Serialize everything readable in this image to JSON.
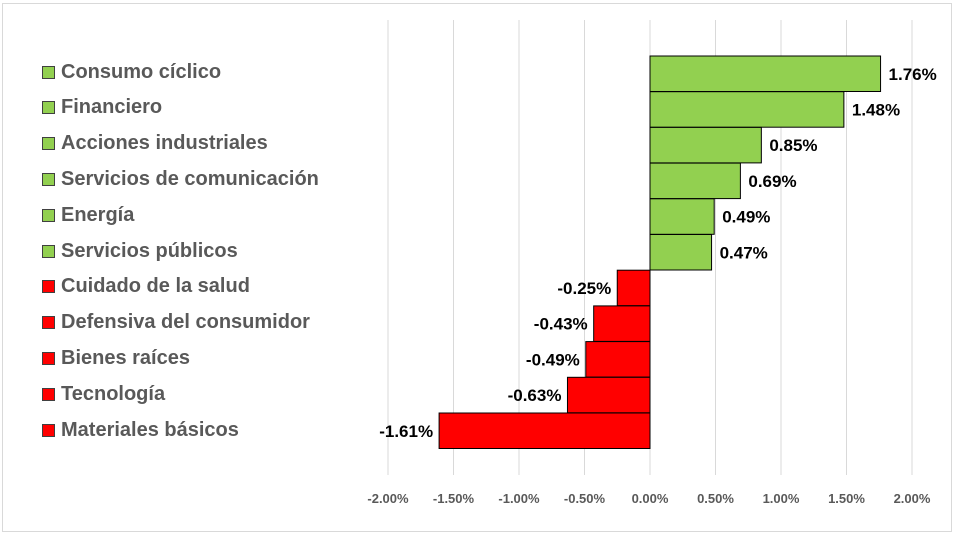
{
  "chart_data": {
    "type": "bar",
    "orientation": "horizontal",
    "categories": [
      "Consumo cíclico",
      "Financiero",
      "Acciones industriales",
      "Servicios de comunicación",
      "Energía",
      "Servicios públicos",
      "Cuidado de la salud",
      "Defensiva del consumidor",
      "Bienes raíces",
      "Tecnología",
      "Materiales básicos"
    ],
    "values": [
      1.76,
      1.48,
      0.85,
      0.69,
      0.49,
      0.47,
      -0.25,
      -0.43,
      -0.49,
      -0.63,
      -1.61
    ],
    "value_labels": [
      "1.76%",
      "1.48%",
      "0.85%",
      "0.69%",
      "0.49%",
      "0.47%",
      "-0.25%",
      "-0.43%",
      "-0.49%",
      "-0.63%",
      "-1.61%"
    ],
    "x_ticks": [
      -2.0,
      -1.5,
      -1.0,
      -0.5,
      0.0,
      0.5,
      1.0,
      1.5,
      2.0
    ],
    "x_tick_labels": [
      "-2.00%",
      "-1.50%",
      "-1.00%",
      "-0.50%",
      "0.00%",
      "0.50%",
      "1.00%",
      "1.50%",
      "2.00%"
    ],
    "xlim": [
      -2.0,
      2.0
    ],
    "grid": true,
    "legend_position": "left",
    "colors": {
      "positive": "#92d050",
      "negative": "#ff0000",
      "bar_border": "#000000",
      "grid": "#d9d9d9",
      "legend_text": "#595959",
      "tick_text": "#595959",
      "value_label_text": "#000000"
    }
  }
}
